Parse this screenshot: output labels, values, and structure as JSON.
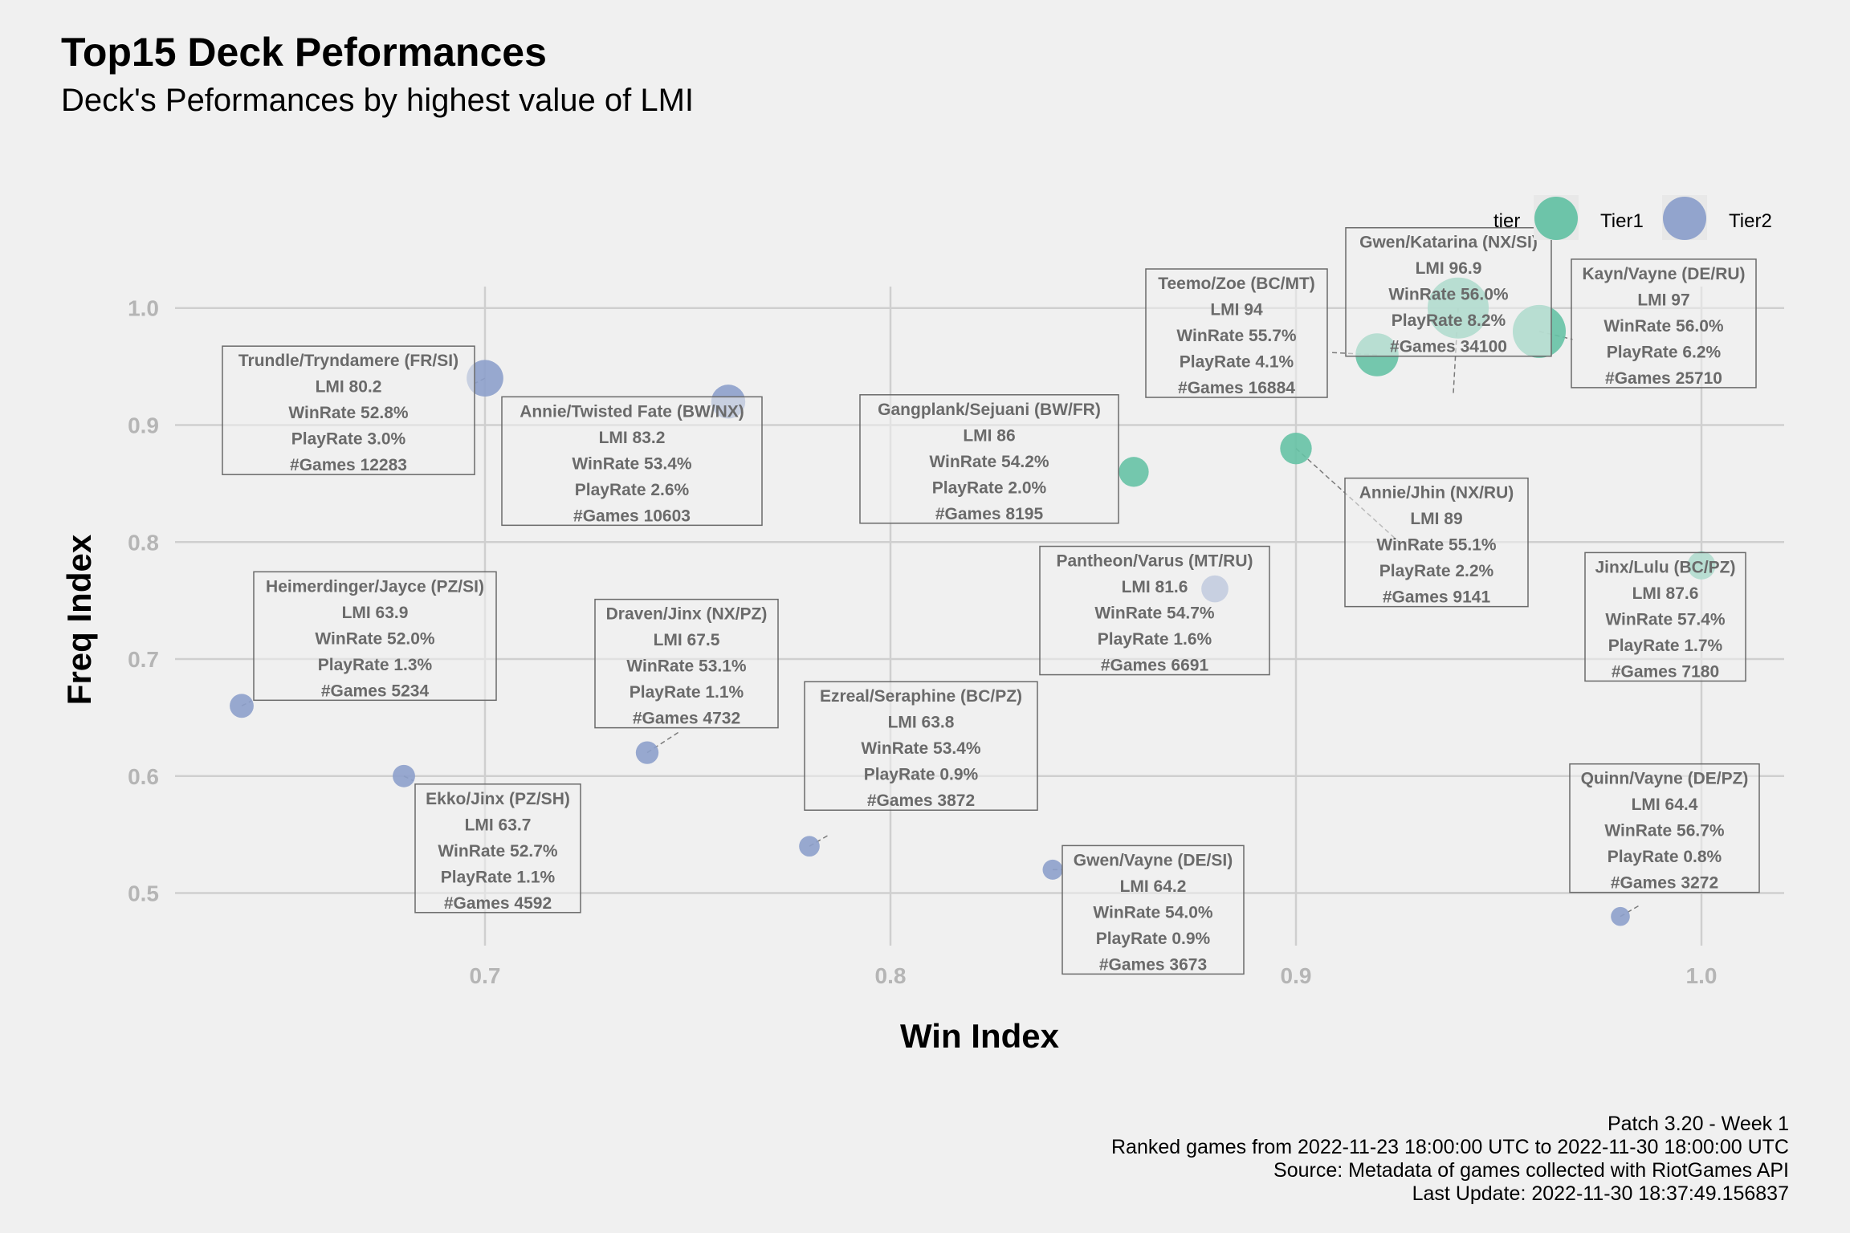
{
  "chart_data": {
    "type": "scatter",
    "title": "Top15 Deck Peformances",
    "subtitle": "Deck's Peformances by highest value of LMI",
    "xlabel": "Win Index",
    "ylabel": "Freq Index",
    "xlim": [
      0.62,
      1.02
    ],
    "ylim": [
      0.44,
      1.03
    ],
    "x_ticks": [
      "0.7",
      "0.8",
      "0.9",
      "1.0"
    ],
    "y_ticks": [
      "0.5",
      "0.6",
      "0.7",
      "0.8",
      "0.9",
      "1.0"
    ],
    "grid": true,
    "legend": {
      "title": "tier",
      "position": "top-right",
      "entries": [
        {
          "label": "Tier1",
          "color": "#66c2a5"
        },
        {
          "label": "Tier2",
          "color": "#8da0cb"
        }
      ]
    },
    "points": [
      {
        "x": 0.94,
        "y": 1.0,
        "tier": "Tier1",
        "games": 34100,
        "label": [
          "Gwen/Katarina (NX/SI)",
          "LMI 96.9",
          "WinRate 56.0%",
          "PlayRate 8.2%",
          "#Games 34100"
        ]
      },
      {
        "x": 0.96,
        "y": 0.98,
        "tier": "Tier1",
        "games": 25710,
        "label": [
          "Kayn/Vayne (DE/RU)",
          "LMI 97",
          "WinRate 56.0%",
          "PlayRate 6.2%",
          "#Games 25710"
        ]
      },
      {
        "x": 0.92,
        "y": 0.96,
        "tier": "Tier1",
        "games": 16884,
        "label": [
          "Teemo/Zoe (BC/MT)",
          "LMI 94",
          "WinRate 55.7%",
          "PlayRate 4.1%",
          "#Games 16884"
        ]
      },
      {
        "x": 0.9,
        "y": 0.88,
        "tier": "Tier1",
        "games": 9141,
        "label": [
          "Annie/Jhin (NX/RU)",
          "LMI 89",
          "WinRate 55.1%",
          "PlayRate 2.2%",
          "#Games 9141"
        ]
      },
      {
        "x": 0.86,
        "y": 0.86,
        "tier": "Tier1",
        "games": 8195,
        "label": [
          "Gangplank/Sejuani (BW/FR)",
          "LMI 86",
          "WinRate 54.2%",
          "PlayRate 2.0%",
          "#Games 8195"
        ]
      },
      {
        "x": 1.0,
        "y": 0.78,
        "tier": "Tier1",
        "games": 7180,
        "label": [
          "Jinx/Lulu (BC/PZ)",
          "LMI 87.6",
          "WinRate 57.4%",
          "PlayRate 1.7%",
          "#Games 7180"
        ]
      },
      {
        "x": 0.7,
        "y": 0.94,
        "tier": "Tier2",
        "games": 12283,
        "label": [
          "Trundle/Tryndamere (FR/SI)",
          "LMI 80.2",
          "WinRate 52.8%",
          "PlayRate 3.0%",
          "#Games 12283"
        ]
      },
      {
        "x": 0.76,
        "y": 0.92,
        "tier": "Tier2",
        "games": 10603,
        "label": [
          "Annie/Twisted Fate (BW/NX)",
          "LMI 83.2",
          "WinRate 53.4%",
          "PlayRate 2.6%",
          "#Games 10603"
        ]
      },
      {
        "x": 0.88,
        "y": 0.76,
        "tier": "Tier2",
        "games": 6691,
        "label": [
          "Pantheon/Varus (MT/RU)",
          "LMI 81.6",
          "WinRate 54.7%",
          "PlayRate 1.6%",
          "#Games 6691"
        ]
      },
      {
        "x": 0.74,
        "y": 0.62,
        "tier": "Tier2",
        "games": 4732,
        "label": [
          "Draven/Jinx (NX/PZ)",
          "LMI 67.5",
          "WinRate 53.1%",
          "PlayRate 1.1%",
          "#Games 4732"
        ]
      },
      {
        "x": 0.64,
        "y": 0.66,
        "tier": "Tier2",
        "games": 5234,
        "label": [
          "Heimerdinger/Jayce (PZ/SI)",
          "LMI 63.9",
          "WinRate 52.0%",
          "PlayRate 1.3%",
          "#Games 5234"
        ]
      },
      {
        "x": 0.68,
        "y": 0.6,
        "tier": "Tier2",
        "games": 4592,
        "label": [
          "Ekko/Jinx (PZ/SH)",
          "LMI 63.7",
          "WinRate 52.7%",
          "PlayRate 1.1%",
          "#Games 4592"
        ]
      },
      {
        "x": 0.78,
        "y": 0.54,
        "tier": "Tier2",
        "games": 3872,
        "label": [
          "Ezreal/Seraphine (BC/PZ)",
          "LMI 63.8",
          "WinRate 53.4%",
          "PlayRate 0.9%",
          "#Games 3872"
        ]
      },
      {
        "x": 0.84,
        "y": 0.52,
        "tier": "Tier2",
        "games": 3673,
        "label": [
          "Gwen/Vayne (DE/SI)",
          "LMI 64.2",
          "WinRate 54.0%",
          "PlayRate 0.9%",
          "#Games 3673"
        ]
      },
      {
        "x": 0.98,
        "y": 0.48,
        "tier": "Tier2",
        "games": 3272,
        "label": [
          "Quinn/Vayne (DE/PZ)",
          "LMI 64.4",
          "WinRate 56.7%",
          "PlayRate 0.8%",
          "#Games 3272"
        ]
      }
    ],
    "caption": [
      "Patch 3.20 - Week 1",
      "Ranked games from 2022-11-23 18:00:00 UTC to 2022-11-30 18:00:00 UTC",
      "Source: Metadata of games collected with RiotGames API",
      "Last Update: 2022-11-30 18:37:49.156837"
    ]
  }
}
